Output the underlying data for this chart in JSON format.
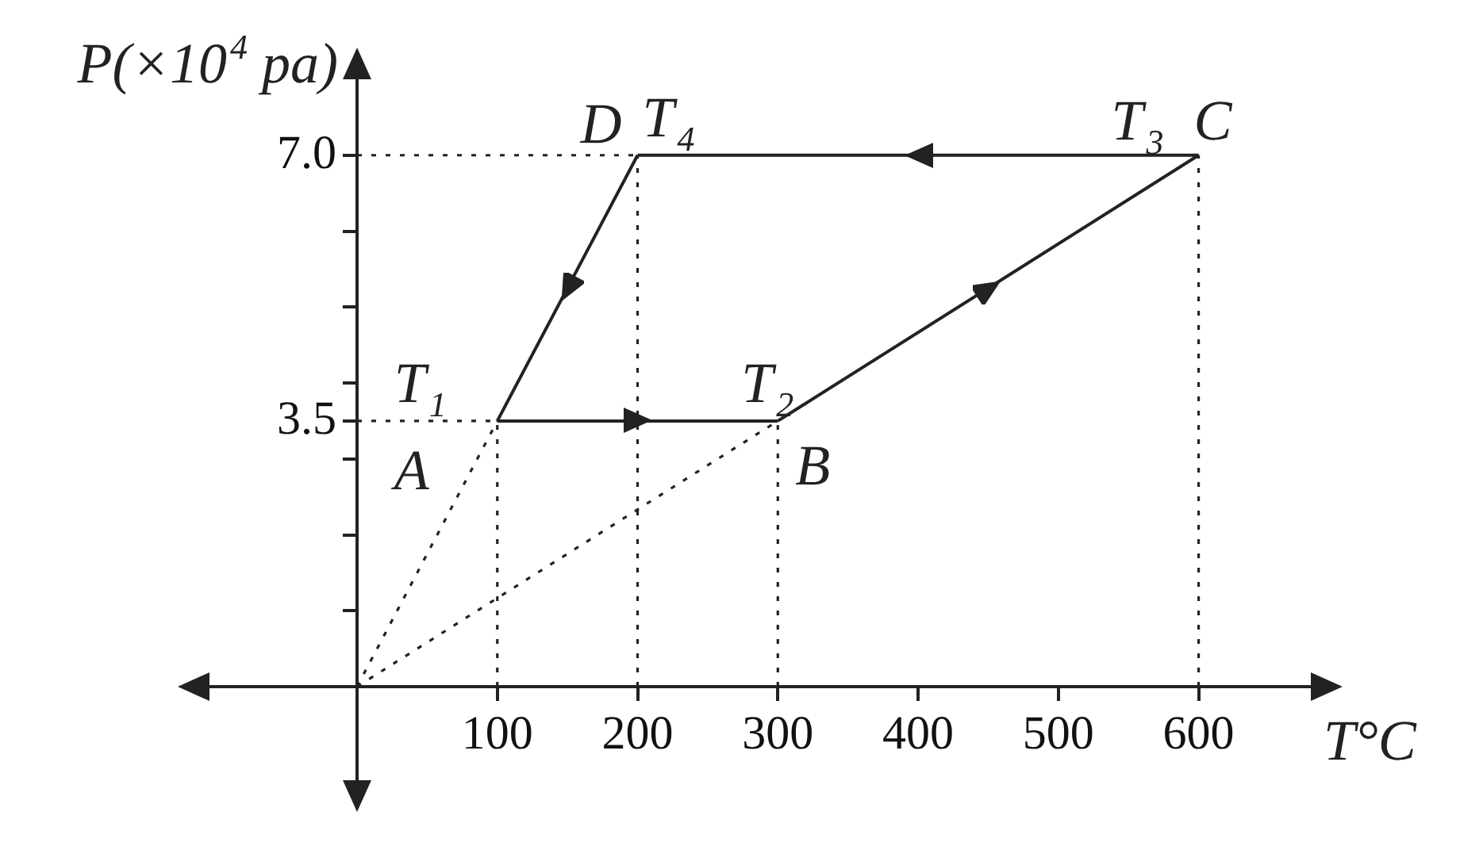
{
  "chart_data": {
    "type": "line",
    "xlabel": "T°C",
    "ylabel": "P(×10$^{4}$ pa)",
    "xlim": [
      0,
      680
    ],
    "ylim": [
      0,
      8
    ],
    "xticks": [
      100,
      200,
      300,
      400,
      500,
      600
    ],
    "yticks": [
      {
        "value": 1,
        "label": null
      },
      {
        "value": 2,
        "label": null
      },
      {
        "value": 3,
        "label": null
      },
      {
        "value": 3.5,
        "label": "3.5"
      },
      {
        "value": 4,
        "label": null
      },
      {
        "value": 5,
        "label": null
      },
      {
        "value": 6,
        "label": null
      },
      {
        "value": 7,
        "label": "7.0"
      }
    ],
    "marker": "none",
    "series": [
      {
        "color": "#222222",
        "x": [
          100,
          300
        ],
        "values": [
          3.5,
          3.5
        ]
      },
      {
        "color": "#222222",
        "x": [
          300,
          600
        ],
        "values": [
          3.5,
          7.0
        ]
      },
      {
        "color": "#222222",
        "x": [
          200,
          600
        ],
        "values": [
          7.0,
          7.0
        ]
      },
      {
        "color": "#222222",
        "x": [
          100,
          200
        ],
        "values": [
          3.5,
          7.0
        ]
      },
      {
        "color": "#222222",
        "line_style": "dotted",
        "x": [
          0,
          100
        ],
        "values": [
          0,
          3.5
        ]
      },
      {
        "color": "#222222",
        "line_style": "dotted",
        "x": [
          0,
          300
        ],
        "values": [
          0,
          3.5
        ]
      },
      {
        "color": "#222222",
        "line_style": "dotted",
        "x": [
          0,
          100
        ],
        "values": [
          3.5,
          3.5
        ]
      },
      {
        "color": "#222222",
        "line_style": "dotted",
        "x": [
          0,
          200
        ],
        "values": [
          7.0,
          7.0
        ]
      },
      {
        "color": "#222222",
        "line_style": "dotted",
        "x": [
          100,
          100
        ],
        "values": [
          0,
          3.5
        ]
      },
      {
        "color": "#222222",
        "line_style": "dotted",
        "x": [
          200,
          200
        ],
        "values": [
          0,
          7.0
        ]
      },
      {
        "color": "#222222",
        "line_style": "dotted",
        "x": [
          300,
          300
        ],
        "values": [
          0,
          3.5
        ]
      },
      {
        "color": "#222222",
        "line_style": "dotted",
        "x": [
          600,
          600
        ],
        "values": [
          0,
          7.0
        ]
      }
    ],
    "annotations": [
      {
        "text": "D",
        "x": 200,
        "y": 7.0
      },
      {
        "text": "T$_{4}$",
        "x": 200,
        "y": 7.0
      },
      {
        "text": "T$_{3}$",
        "x": 600,
        "y": 7.0
      },
      {
        "text": "C",
        "x": 600,
        "y": 7.0
      },
      {
        "text": "T$_{2}$",
        "x": 300,
        "y": 3.5
      },
      {
        "text": "B",
        "x": 300,
        "y": 3.5
      },
      {
        "text": "T$_{1}$",
        "x": 100,
        "y": 3.5
      },
      {
        "text": "A",
        "x": 100,
        "y": 3.5
      }
    ]
  }
}
